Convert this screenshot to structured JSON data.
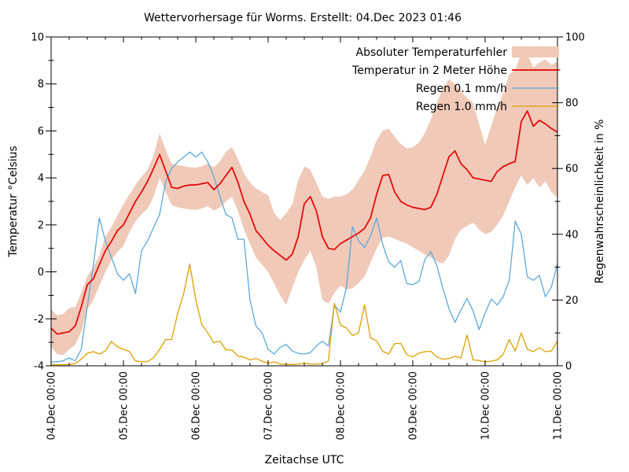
{
  "chart": {
    "title": "Wettervorhersage für Worms. Erstellt: 04.Dec 2023 01:46",
    "x_label": "Zeitachse UTC",
    "y_left_label": "Temperatur °Celsius",
    "y_right_label": "Regenwahrscheinlichkeit in %"
  },
  "legend": {
    "items": [
      {
        "label": "Absoluter Temperaturfehler",
        "type": "band",
        "color": "#f0c9b8"
      },
      {
        "label": "Temperatur in 2 Meter Höhe",
        "type": "line",
        "color": "#e60000"
      },
      {
        "label": "Regen 0.1 mm/h",
        "type": "line",
        "color": "#5ca9dc"
      },
      {
        "label": "Regen 1.0 mm/h",
        "type": "line",
        "color": "#dda000"
      }
    ]
  },
  "chart_data": {
    "type": "line",
    "title": "Wettervorhersage für Worms. Erstellt: 04.Dec 2023 01:46",
    "xlabel": "Zeitachse UTC",
    "ylabel_left": "Temperatur °Celsius",
    "ylabel_right": "Regenwahrscheinlichkeit in %",
    "ylim_left": [
      -4,
      10
    ],
    "ylim_right": [
      0,
      100
    ],
    "y_left_major_step": 2,
    "y_left_minor_step": 1,
    "y_right_major_step": 20,
    "y_right_minor_step": 10,
    "x_hours_total": 168,
    "x_minor_step_hours": 6,
    "x_major_step_hours": 24,
    "x_tick_labels": [
      "04.Dec 00:00",
      "05.Dec 00:00",
      "06.Dec 00:00",
      "07.Dec 00:00",
      "08.Dec 00:00",
      "09.Dec 00:00",
      "10.Dec 00:00",
      "11.Dec 00:00"
    ],
    "y_left_tick_labels": [
      10,
      8,
      6,
      4,
      2,
      0,
      -2,
      -4
    ],
    "y_right_tick_labels": [
      100,
      80,
      60,
      40,
      20,
      0
    ],
    "grid": false,
    "legend_position": "top-right-inside",
    "hours_step": 2,
    "series": [
      {
        "name": "Absoluter Temperaturfehler",
        "axis": "left",
        "style": "band",
        "color": "#f0c9b8",
        "upper": [
          -1.6,
          -1.85,
          -1.8,
          -1.55,
          -1.5,
          -0.9,
          -0.2,
          0.2,
          0.7,
          1.5,
          1.9,
          2.4,
          2.87,
          3.3,
          3.7,
          4.05,
          4.35,
          4.95,
          5.9,
          5.2,
          4.6,
          4.55,
          4.5,
          4.45,
          4.43,
          4.5,
          4.6,
          4.45,
          4.7,
          5.1,
          5.32,
          4.8,
          4.2,
          3.8,
          3.55,
          3.4,
          3.27,
          2.5,
          2.2,
          2.5,
          2.87,
          3.9,
          4.48,
          4.35,
          3.8,
          3.2,
          3.1,
          3.2,
          3.2,
          3.3,
          3.5,
          3.9,
          4.3,
          4.9,
          5.6,
          6.0,
          6.1,
          5.75,
          5.45,
          5.25,
          5.3,
          5.5,
          5.9,
          6.5,
          7.2,
          7.8,
          8.2,
          8.0,
          7.7,
          7.4,
          7.2,
          6.3,
          5.4,
          6.2,
          7.0,
          7.6,
          8.4,
          8.6,
          9.3,
          9.25,
          8.7,
          8.9,
          9.05,
          8.8,
          8.95
        ],
        "lower": [
          -3.2,
          -3.5,
          -3.55,
          -3.3,
          -3.1,
          -2.55,
          -1.6,
          -1.2,
          -0.6,
          0.0,
          0.5,
          0.85,
          1.1,
          1.7,
          2.15,
          2.45,
          2.7,
          3.2,
          4.0,
          3.4,
          2.85,
          2.75,
          2.7,
          2.65,
          2.64,
          2.7,
          2.8,
          2.6,
          2.75,
          3.0,
          3.2,
          2.6,
          1.8,
          1.2,
          0.6,
          0.3,
          0.0,
          -0.5,
          -1.0,
          -1.4,
          -0.68,
          0.0,
          0.5,
          0.89,
          0.2,
          -1.2,
          -1.35,
          -0.9,
          -0.58,
          -0.75,
          -0.7,
          -0.48,
          -0.2,
          0.4,
          1.0,
          1.45,
          1.5,
          1.4,
          1.3,
          1.2,
          1.05,
          0.9,
          0.75,
          0.62,
          0.45,
          0.35,
          0.7,
          1.4,
          1.8,
          1.95,
          2.1,
          1.8,
          1.6,
          1.7,
          2.0,
          2.4,
          3.0,
          3.6,
          4.1,
          3.7,
          4.0,
          3.6,
          3.85,
          3.4,
          3.15
        ]
      },
      {
        "name": "Temperatur in 2 Meter Höhe",
        "axis": "left",
        "style": "line",
        "color": "#e60000",
        "values": [
          -2.4,
          -2.65,
          -2.6,
          -2.55,
          -2.3,
          -1.5,
          -0.55,
          -0.3,
          0.3,
          0.9,
          1.3,
          1.75,
          2.0,
          2.5,
          3.0,
          3.4,
          3.85,
          4.4,
          5.0,
          4.3,
          3.6,
          3.55,
          3.65,
          3.7,
          3.7,
          3.75,
          3.8,
          3.5,
          3.75,
          4.1,
          4.45,
          3.8,
          3.0,
          2.45,
          1.75,
          1.45,
          1.13,
          0.9,
          0.7,
          0.5,
          0.75,
          1.5,
          2.9,
          3.2,
          2.6,
          1.5,
          1.0,
          0.95,
          1.2,
          1.35,
          1.5,
          1.65,
          1.85,
          2.3,
          3.3,
          4.1,
          4.15,
          3.4,
          3.0,
          2.85,
          2.75,
          2.7,
          2.65,
          2.75,
          3.3,
          4.1,
          4.9,
          5.15,
          4.6,
          4.35,
          4.0,
          3.95,
          3.9,
          3.85,
          4.27,
          4.48,
          4.6,
          4.7,
          6.4,
          6.85,
          6.2,
          6.45,
          6.3,
          6.1,
          5.95
        ]
      },
      {
        "name": "Regen 0.1 mm/h",
        "axis": "right",
        "style": "line",
        "color": "#5ca9dc",
        "values": [
          1.2,
          1.2,
          1.5,
          2.4,
          1.5,
          5,
          18,
          30.5,
          45,
          38,
          33,
          28,
          26,
          28,
          22,
          35,
          38,
          42,
          46,
          56,
          60,
          62,
          63.5,
          65,
          63.5,
          65,
          62,
          57.5,
          51.5,
          46,
          45,
          38.5,
          38.5,
          20,
          12,
          10,
          5,
          3.6,
          5.6,
          6.5,
          4.5,
          3.8,
          3.6,
          4,
          6,
          7.5,
          6,
          18.4,
          16.3,
          24,
          42.3,
          38,
          36,
          39.5,
          45,
          37,
          31.6,
          30,
          32,
          25,
          24.7,
          25.6,
          32.3,
          34.7,
          30.4,
          23.5,
          17.5,
          13.2,
          17,
          20.5,
          16.7,
          11,
          16,
          20.3,
          18.5,
          21,
          26,
          44,
          40,
          27,
          26,
          27.5,
          21,
          24,
          31
        ]
      },
      {
        "name": "Regen 1.0 mm/h",
        "axis": "right",
        "style": "line",
        "color": "#dda000",
        "values": [
          0.3,
          0.3,
          0.3,
          0.4,
          0.7,
          2,
          3.8,
          4.3,
          3.6,
          4.5,
          7.4,
          5.8,
          5,
          4.3,
          1.5,
          1.2,
          1.3,
          2.4,
          5,
          8,
          8,
          16,
          22,
          31,
          20,
          12.5,
          10,
          7,
          7.5,
          4.8,
          4.8,
          3,
          2.6,
          1.8,
          2.2,
          1.4,
          0.8,
          1.2,
          0.5,
          0.5,
          0.4,
          0.5,
          0.8,
          0.5,
          0.5,
          0.7,
          1.5,
          19,
          12.4,
          11.5,
          9.2,
          10,
          18.5,
          8.5,
          7.6,
          4.4,
          3.6,
          6.8,
          6.8,
          3.4,
          2.7,
          3.8,
          4.3,
          4.4,
          2.7,
          2,
          2.2,
          2.9,
          2.4,
          9.3,
          1.8,
          1.6,
          1.2,
          1.4,
          1.8,
          3.5,
          8,
          4.5,
          10,
          5,
          4.3,
          5.5,
          4.3,
          4.5,
          7.5
        ]
      }
    ]
  }
}
